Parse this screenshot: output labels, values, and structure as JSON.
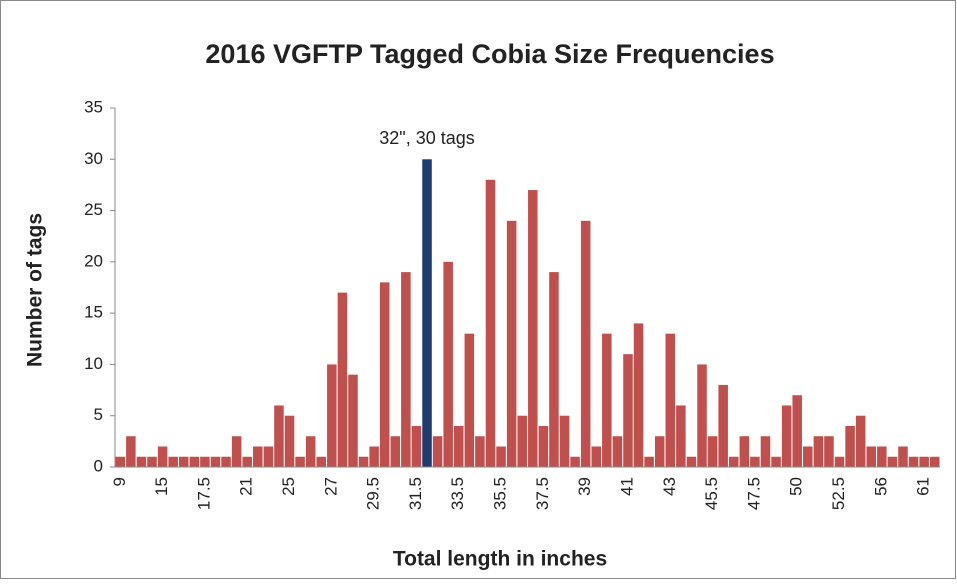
{
  "chart_data": {
    "type": "bar",
    "title": "2016 VGFTP Tagged Cobia Size Frequencies",
    "x_label": "Total length in inches",
    "y_label": "Number of tags",
    "annotation": "32\", 30 tags",
    "categories": [
      "9",
      null,
      null,
      null,
      "15",
      null,
      null,
      null,
      "17.5",
      null,
      null,
      null,
      "21",
      null,
      null,
      null,
      "25",
      null,
      null,
      null,
      "27",
      null,
      null,
      null,
      "29.5",
      null,
      null,
      null,
      "31.5",
      null,
      null,
      null,
      "33.5",
      null,
      null,
      null,
      "35.5",
      null,
      null,
      null,
      "37.5",
      null,
      null,
      null,
      "39",
      null,
      null,
      null,
      "41",
      null,
      null,
      null,
      "43",
      null,
      null,
      null,
      "45.5",
      null,
      null,
      null,
      "47.5",
      null,
      null,
      null,
      "50",
      null,
      null,
      null,
      "52.5",
      null,
      null,
      null,
      "56",
      null,
      null,
      null,
      "61",
      null
    ],
    "values": [
      1,
      3,
      1,
      1,
      2,
      1,
      1,
      1,
      1,
      1,
      1,
      3,
      1,
      2,
      2,
      6,
      5,
      1,
      3,
      1,
      10,
      17,
      9,
      1,
      2,
      18,
      3,
      19,
      4,
      30,
      3,
      20,
      4,
      13,
      3,
      28,
      2,
      24,
      5,
      27,
      4,
      19,
      5,
      1,
      24,
      2,
      13,
      3,
      11,
      14,
      1,
      3,
      13,
      6,
      1,
      10,
      3,
      8,
      1,
      3,
      1,
      3,
      1,
      6,
      7,
      2,
      3,
      3,
      1,
      4,
      5,
      2,
      2,
      1,
      2,
      1,
      1,
      1
    ],
    "color": "#c0504d",
    "highlight_color": "#1f3b6e",
    "highlight_category": 29,
    "ylim": [
      0,
      35
    ],
    "yticks": [
      0,
      5,
      10,
      15,
      20,
      25,
      30,
      35
    ],
    "grid": false
  }
}
